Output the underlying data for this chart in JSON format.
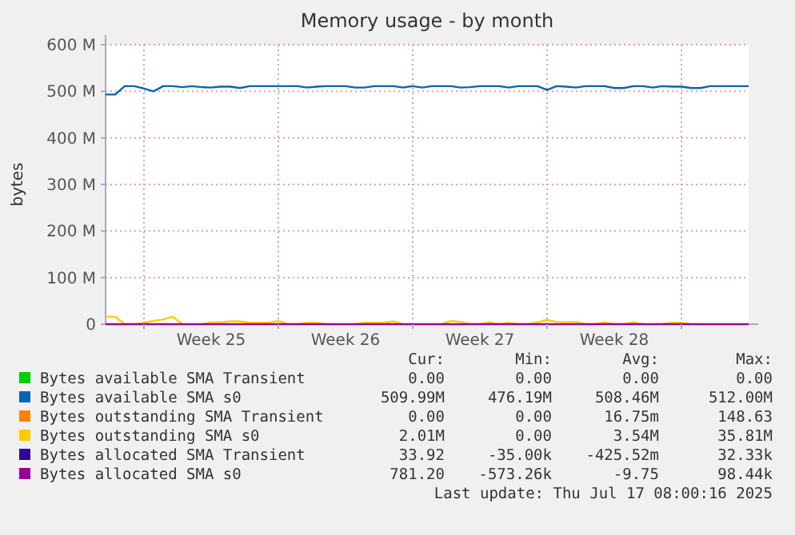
{
  "chart_data": {
    "type": "line",
    "title": "Memory usage - by month",
    "ylabel": "bytes",
    "ylim": [
      0,
      600
    ],
    "categories": [
      null,
      null,
      null,
      null,
      null,
      null,
      null,
      null,
      null,
      null,
      null,
      "Week 25",
      null,
      null,
      null,
      null,
      null,
      null,
      null,
      null,
      null,
      null,
      null,
      null,
      null,
      "Week 26",
      null,
      null,
      null,
      null,
      null,
      null,
      null,
      null,
      null,
      null,
      null,
      null,
      null,
      "Week 27",
      null,
      null,
      null,
      null,
      null,
      null,
      null,
      null,
      null,
      null,
      null,
      null,
      null,
      "Week 28",
      null,
      null,
      null,
      null,
      null,
      null,
      null,
      null,
      null,
      null,
      null,
      null,
      null,
      null
    ],
    "yticks": [
      {
        "value": 0,
        "label": "0"
      },
      {
        "value": 100,
        "label": "100 M"
      },
      {
        "value": 200,
        "label": "200 M"
      },
      {
        "value": 300,
        "label": "300 M"
      },
      {
        "value": 400,
        "label": "400 M"
      },
      {
        "value": 500,
        "label": "500 M"
      },
      {
        "value": 600,
        "label": "600 M"
      }
    ],
    "grid": true,
    "legend": "bottom",
    "marker": "none",
    "line_style": "solid",
    "series": [
      {
        "name": "Bytes available SMA Transient",
        "color": "#00cc00",
        "values": [
          null,
          null,
          null,
          null,
          null,
          null,
          null,
          null,
          null,
          null,
          null,
          null,
          null,
          null,
          null,
          null,
          null,
          null,
          null,
          null,
          null,
          null,
          null,
          null,
          null,
          null,
          null,
          null,
          null,
          null,
          null,
          null,
          null,
          null,
          null,
          null,
          null,
          null,
          null,
          null,
          null,
          null,
          null,
          null,
          null,
          null,
          null,
          null,
          null,
          null,
          null,
          null,
          null,
          null,
          null,
          null,
          null,
          null,
          null,
          null,
          null,
          null,
          null,
          null,
          null,
          null,
          null,
          null
        ]
      },
      {
        "name": "Bytes available SMA s0",
        "color": "#0066b3",
        "values": [
          493,
          493,
          511,
          511,
          506,
          500,
          511,
          511,
          509,
          511,
          509,
          508,
          510,
          510,
          507,
          511,
          511,
          511,
          511,
          511,
          511,
          508,
          510,
          511,
          511,
          511,
          508,
          508,
          511,
          511,
          511,
          508,
          511,
          508,
          511,
          511,
          511,
          508,
          509,
          511,
          511,
          511,
          508,
          511,
          511,
          511,
          503,
          511,
          510,
          508,
          511,
          511,
          511,
          507,
          507,
          511,
          511,
          508,
          511,
          510,
          510,
          507,
          507,
          511,
          511,
          511,
          511,
          511
        ]
      },
      {
        "name": "Bytes outstanding SMA Transient",
        "color": "#ff8000",
        "values": [
          null,
          null,
          null,
          null,
          null,
          null,
          null,
          null,
          null,
          null,
          null,
          null,
          null,
          null,
          null,
          null,
          null,
          null,
          null,
          null,
          null,
          null,
          null,
          null,
          null,
          null,
          null,
          null,
          null,
          null,
          null,
          null,
          null,
          null,
          null,
          null,
          null,
          null,
          null,
          null,
          null,
          null,
          null,
          null,
          null,
          null,
          null,
          null,
          null,
          null,
          null,
          null,
          null,
          null,
          null,
          null,
          null,
          null,
          null,
          null,
          null,
          null,
          null,
          null,
          null,
          null,
          null,
          null
        ]
      },
      {
        "name": "Bytes outstanding SMA s0",
        "color": "#ffcc00",
        "values": [
          16,
          16,
          0,
          0,
          3,
          7,
          10,
          16,
          0,
          null,
          0,
          4,
          4,
          6,
          6,
          3,
          3,
          3,
          7,
          0,
          0,
          3,
          3,
          0,
          null,
          null,
          0,
          3,
          3,
          3,
          6,
          0,
          null,
          null,
          null,
          0,
          7,
          5,
          0,
          0,
          4,
          0,
          3,
          0,
          0,
          4,
          9,
          5,
          4,
          5,
          0,
          0,
          4,
          0,
          0,
          4,
          0,
          null,
          0,
          3,
          3,
          0,
          null,
          null,
          null,
          null,
          null,
          null
        ]
      },
      {
        "name": "Bytes allocated SMA Transient",
        "color": "#330099",
        "values": [
          null,
          null,
          null,
          null,
          null,
          null,
          null,
          null,
          null,
          null,
          null,
          null,
          null,
          null,
          null,
          null,
          null,
          null,
          null,
          null,
          null,
          null,
          null,
          null,
          null,
          null,
          null,
          null,
          null,
          null,
          null,
          null,
          null,
          null,
          null,
          null,
          null,
          null,
          null,
          null,
          null,
          null,
          null,
          null,
          null,
          null,
          null,
          null,
          null,
          null,
          null,
          null,
          null,
          null,
          null,
          null,
          null,
          null,
          null,
          null,
          null,
          null,
          null,
          null,
          null,
          null,
          null,
          null
        ]
      },
      {
        "name": "Bytes allocated SMA s0",
        "color": "#990099",
        "values": [
          0,
          0,
          0,
          0,
          0,
          0,
          0,
          0,
          0,
          0,
          0,
          0,
          0,
          0,
          0,
          0,
          0,
          0,
          0,
          0,
          0,
          0,
          0,
          0,
          0,
          0,
          0,
          0,
          0,
          0,
          0,
          0,
          0,
          0,
          0,
          0,
          0,
          0,
          0,
          0,
          0,
          0,
          0,
          0,
          0,
          0,
          0,
          0,
          0,
          0,
          0,
          0,
          0,
          0,
          0,
          0,
          0,
          0,
          0,
          0,
          0,
          0,
          0,
          0,
          0,
          0,
          0,
          0
        ]
      }
    ],
    "annotations": [
      "Cur:",
      "Min:",
      "Avg:",
      "Max:",
      "0.00",
      "0.00",
      "0.00",
      "0.00",
      "509.99M",
      "476.19M",
      "508.46M",
      "512.00M",
      "0.00",
      "0.00",
      "16.75m",
      "148.63",
      "2.01M",
      "0.00",
      "3.54M",
      "35.81M",
      "33.92",
      "-35.00k",
      "-425.52m",
      "32.33k",
      "781.20",
      "-573.26k",
      "-9.75",
      "98.44k",
      "Last update: Thu Jul 17 08:00:16 2025"
    ]
  }
}
